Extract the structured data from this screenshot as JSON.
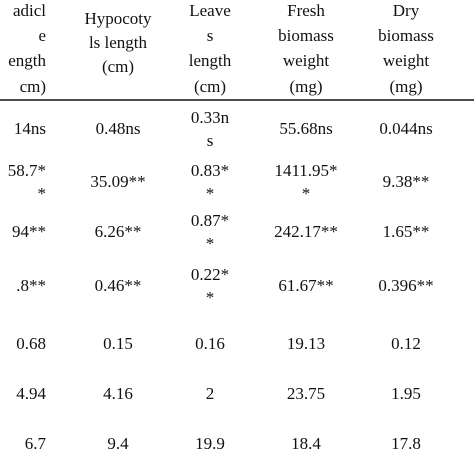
{
  "table": {
    "header": [
      [
        "adicl",
        "e",
        "ength",
        "cm)"
      ],
      [
        "Hypocoty",
        "ls length",
        "(cm)"
      ],
      [
        "Leave",
        "s",
        "length",
        "(cm)"
      ],
      [
        "Fresh",
        "biomass",
        "weight",
        "(mg)"
      ],
      [
        "Dry",
        "biomass",
        "weight",
        "(mg)"
      ]
    ],
    "rows": [
      [
        [
          "14ns"
        ],
        [
          "0.48ns"
        ],
        [
          "0.33n",
          "s"
        ],
        [
          "55.68ns"
        ],
        [
          "0.044ns"
        ]
      ],
      [
        [
          "58.7*",
          "*"
        ],
        [
          "35.09**"
        ],
        [
          "0.83*",
          "*"
        ],
        [
          "1411.95*",
          "*"
        ],
        [
          "9.38**"
        ]
      ],
      [
        [
          "94**"
        ],
        [
          "6.26**"
        ],
        [
          "0.87*",
          "*"
        ],
        [
          "242.17**"
        ],
        [
          "1.65**"
        ]
      ],
      [
        [
          ".8**"
        ],
        [
          "0.46**"
        ],
        [
          "0.22*",
          "*"
        ],
        [
          "61.67**"
        ],
        [
          "0.396**"
        ]
      ],
      [
        [
          "0.68"
        ],
        [
          "0.15"
        ],
        [
          "0.16"
        ],
        [
          "19.13"
        ],
        [
          "0.12"
        ]
      ],
      [
        [
          "4.94"
        ],
        [
          "4.16"
        ],
        [
          "2"
        ],
        [
          "23.75"
        ],
        [
          "1.95"
        ]
      ],
      [
        [
          "6.7"
        ],
        [
          "9.4"
        ],
        [
          "19.9"
        ],
        [
          "18.4"
        ],
        [
          "17.8"
        ]
      ]
    ]
  }
}
